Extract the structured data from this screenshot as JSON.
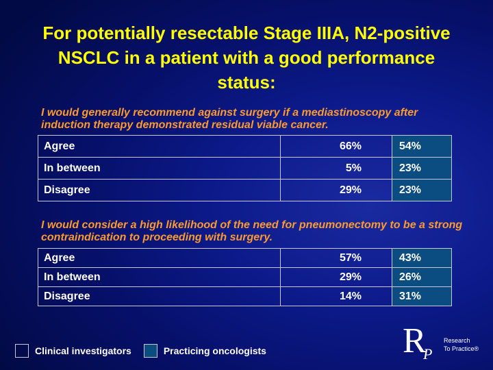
{
  "title": "For potentially resectable Stage IIIA, N2-positive NSCLC in a patient with a good performance status:",
  "questions": [
    {
      "text": "I would generally recommend against surgery if a mediastinoscopy after induction therapy demonstrated residual viable cancer.",
      "rows": [
        {
          "label": "Agree",
          "clinical": "66%",
          "practicing": "54%"
        },
        {
          "label": "In between",
          "clinical": "5%",
          "practicing": "23%"
        },
        {
          "label": "Disagree",
          "clinical": "29%",
          "practicing": "23%"
        }
      ]
    },
    {
      "text": "I would consider a high likelihood of the need for pneumonectomy to be a strong contraindication to proceeding with surgery.",
      "rows": [
        {
          "label": "Agree",
          "clinical": "57%",
          "practicing": "43%"
        },
        {
          "label": "In between",
          "clinical": "29%",
          "practicing": "26%"
        },
        {
          "label": "Disagree",
          "clinical": "14%",
          "practicing": "31%"
        }
      ]
    }
  ],
  "legend": {
    "clinical": "Clinical investigators",
    "practicing": "Practicing oncologists"
  },
  "logo": {
    "letter_r": "R",
    "letter_p": "P",
    "line1": "Research",
    "line2": "To Practice®"
  },
  "colors": {
    "title": "#ffff00",
    "question": "#ff9a2e",
    "practicing_fill": "#0b4d80",
    "background": "#0c1a8a"
  }
}
